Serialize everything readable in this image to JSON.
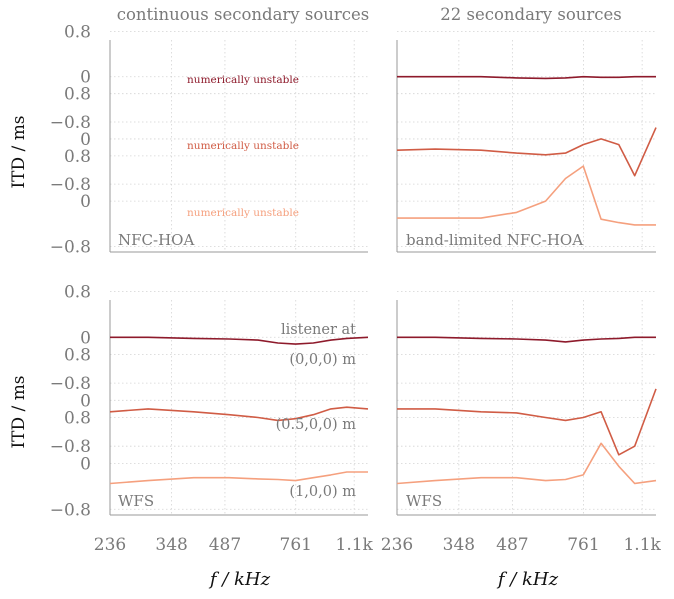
{
  "figure": {
    "column_titles": [
      "continuous secondary sources",
      "22 secondary sources"
    ],
    "ylabel": "ITD / ms",
    "xlabel": "f  / kHz",
    "unstable_label": "numerically unstable",
    "listener_label": "listener at",
    "listener_positions": [
      "(0,0,0) m",
      "(0.5,0,0) m",
      "(1,0,0) m"
    ]
  },
  "colors": {
    "listener_0": "#8e1a2b",
    "listener_05": "#d05c45",
    "listener_1": "#f5a07e",
    "grid": "#d4d4d4",
    "axis": "#9a9a9a",
    "text": "#7a7a7a"
  },
  "chart_data": [
    {
      "type": "line",
      "title": "continuous secondary sources",
      "corner_label": "NFC-HOA",
      "x": [
        236,
        348,
        487,
        761,
        1100
      ],
      "xtick_labels": [
        "236",
        "348",
        "487",
        "761",
        "1.1k"
      ],
      "ylabel": "ITD / ms",
      "yticks": [
        "0.8",
        "0",
        "−0.8"
      ],
      "series": [
        {
          "name": "(0,0,0) m",
          "x": [],
          "values": [],
          "note": "numerically unstable"
        },
        {
          "name": "(0.5,0,0) m",
          "x": [],
          "values": [],
          "note": "numerically unstable"
        },
        {
          "name": "(1,0,0) m",
          "x": [],
          "values": [],
          "note": "numerically unstable"
        }
      ]
    },
    {
      "type": "line",
      "title": "22 secondary sources",
      "corner_label": "band-limited NFC-HOA",
      "x": [
        236,
        348,
        487,
        761,
        1100
      ],
      "xtick_labels": [
        "236",
        "348",
        "487",
        "761",
        "1.1k"
      ],
      "yticks": [
        "0.8",
        "0",
        "−0.8"
      ],
      "series": [
        {
          "name": "(0,0,0) m",
          "x": [
            236,
            300,
            400,
            500,
            600,
            680,
            760,
            850,
            950,
            1050,
            1200
          ],
          "values": [
            0.0,
            0.0,
            0.0,
            -0.02,
            -0.03,
            -0.02,
            0.0,
            -0.01,
            -0.01,
            0.0,
            0.0
          ]
        },
        {
          "name": "(0.5,0,0) m",
          "x": [
            236,
            300,
            400,
            500,
            600,
            680,
            760,
            850,
            950,
            1050,
            1200
          ],
          "values": [
            -0.2,
            -0.18,
            -0.2,
            -0.25,
            -0.28,
            -0.25,
            -0.1,
            0.0,
            -0.1,
            -0.65,
            0.2
          ]
        },
        {
          "name": "(1,0,0) m",
          "x": [
            236,
            300,
            400,
            500,
            600,
            680,
            760,
            850,
            950,
            1050,
            1200
          ],
          "values": [
            -0.3,
            -0.3,
            -0.3,
            -0.2,
            0.0,
            0.4,
            0.62,
            -0.32,
            -0.38,
            -0.42,
            -0.42
          ]
        }
      ]
    },
    {
      "type": "line",
      "title": "",
      "corner_label": "WFS",
      "x": [
        236,
        348,
        487,
        761,
        1100
      ],
      "xtick_labels": [
        "236",
        "348",
        "487",
        "761",
        "1.1k"
      ],
      "ylabel": "ITD / ms",
      "yticks": [
        "0.8",
        "0",
        "−0.8"
      ],
      "series": [
        {
          "name": "(0,0,0) m",
          "x": [
            236,
            300,
            400,
            500,
            600,
            680,
            760,
            850,
            950,
            1050,
            1200
          ],
          "values": [
            0.0,
            0.0,
            -0.02,
            -0.03,
            -0.05,
            -0.1,
            -0.12,
            -0.1,
            -0.05,
            -0.02,
            0.0
          ]
        },
        {
          "name": "(0.5,0,0) m",
          "x": [
            236,
            300,
            400,
            500,
            600,
            680,
            760,
            850,
            950,
            1050,
            1200
          ],
          "values": [
            -0.2,
            -0.15,
            -0.2,
            -0.25,
            -0.3,
            -0.35,
            -0.32,
            -0.25,
            -0.15,
            -0.12,
            -0.15
          ]
        },
        {
          "name": "(1,0,0) m",
          "x": [
            236,
            300,
            400,
            500,
            600,
            680,
            760,
            850,
            950,
            1050,
            1200
          ],
          "values": [
            -0.35,
            -0.3,
            -0.25,
            -0.25,
            -0.27,
            -0.28,
            -0.3,
            -0.25,
            -0.2,
            -0.15,
            -0.15
          ]
        }
      ]
    },
    {
      "type": "line",
      "title": "",
      "corner_label": "WFS",
      "x": [
        236,
        348,
        487,
        761,
        1100
      ],
      "xtick_labels": [
        "236",
        "348",
        "487",
        "761",
        "1.1k"
      ],
      "yticks": [
        "0.8",
        "0",
        "−0.8"
      ],
      "series": [
        {
          "name": "(0,0,0) m",
          "x": [
            236,
            300,
            400,
            500,
            600,
            680,
            760,
            850,
            950,
            1050,
            1200
          ],
          "values": [
            0.0,
            0.0,
            -0.02,
            -0.03,
            -0.05,
            -0.08,
            -0.05,
            -0.03,
            -0.02,
            0.0,
            0.0
          ]
        },
        {
          "name": "(0.5,0,0) m",
          "x": [
            236,
            300,
            400,
            500,
            600,
            680,
            760,
            850,
            950,
            1050,
            1200
          ],
          "values": [
            -0.15,
            -0.15,
            -0.2,
            -0.22,
            -0.3,
            -0.35,
            -0.3,
            -0.2,
            -0.95,
            -0.8,
            0.2
          ]
        },
        {
          "name": "(1,0,0) m",
          "x": [
            236,
            300,
            400,
            500,
            600,
            680,
            760,
            850,
            950,
            1050,
            1200
          ],
          "values": [
            -0.35,
            -0.3,
            -0.25,
            -0.25,
            -0.3,
            -0.28,
            -0.2,
            0.35,
            -0.05,
            -0.35,
            -0.3
          ]
        }
      ]
    }
  ]
}
